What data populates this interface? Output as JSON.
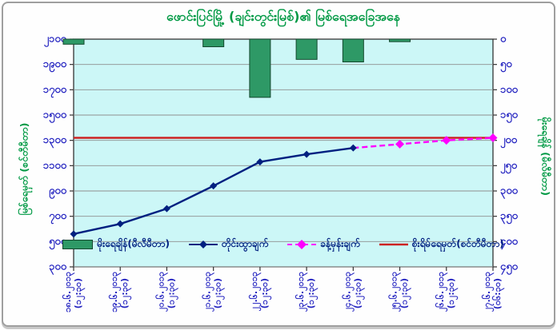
{
  "window": {
    "background": "#ffffff",
    "frame_border_color": "#9f9f9f",
    "plot_background": "#ccf7f7"
  },
  "title": "ဖောင်းပြင်မြို့ (ချင်းတွင်းမြစ်)၏ မြစ်ရေအခြေအနေ",
  "colors": {
    "title_green": "#009944",
    "axis_label_blue": "#1f1fbf",
    "legend_text_navy": "#002080",
    "bar_green": "#2E9966",
    "bar_border": "#14482e",
    "observed_line_navy": "#002080",
    "forecast_line_magenta": "#FF00FF",
    "danger_line_red": "#CC2222",
    "gridline_gray": "#8f8f8f",
    "plot_border": "#333333"
  },
  "chart_data": {
    "type": "combo (bar + line + dashed line + hline)",
    "x_categories": [
      {
        "date": "၁၈.၆.၂၀၁၃",
        "time": "(၁၂:၃၀)"
      },
      {
        "date": "၁၉.၆.၂၀၁၃",
        "time": "(၁၂:၃၀)"
      },
      {
        "date": "၂၀.၆.၂၀၁၃",
        "time": "(၁၂:၃၀)"
      },
      {
        "date": "၂၁.၆.၂၀၁၃",
        "time": "(၁၂:၃၀)"
      },
      {
        "date": "၂၂.၆.၂၀၁၃",
        "time": "(၁၂:၃၀)"
      },
      {
        "date": "၂၃.၆.၂၀၁၃",
        "time": "(၁၂:၃၀)"
      },
      {
        "date": "၂၄.၆.၂၀၁၃",
        "time": "(၁၂:၃၀)"
      },
      {
        "date": "၂၅.၆.၂၀၁၃",
        "time": "(၁၂:၃၀)"
      },
      {
        "date": "၂၆.၆.၂၀၁၃",
        "time": "(၁၂:၃၀)"
      },
      {
        "date": "၂၇.၆.၂၀၁၃",
        "time": "(၀၆:၃၀)"
      }
    ],
    "left_axis": {
      "title": "မြစ်ရေမှတ် (စင်တီမီတာ)",
      "min": 300,
      "max": 2100,
      "step": 200,
      "tick_values": [
        2100,
        1900,
        1700,
        1500,
        1300,
        1100,
        900,
        700,
        500,
        300
      ],
      "tick_labels": [
        "၂၁၀၀",
        "၁၉၀၀",
        "၁၇၀၀",
        "၁၅၀၀",
        "၁၃၀၀",
        "၁၁၀၀",
        "၉၀၀",
        "၇၀၀",
        "၅၀၀",
        "၃၀၀"
      ]
    },
    "right_axis": {
      "title": "မိုးရေချိန် (မီလီမီတာ)",
      "min": 0,
      "max": 450,
      "step": 50,
      "inverted_from_top": true,
      "tick_values": [
        0,
        50,
        100,
        150,
        200,
        250,
        300,
        350,
        400,
        450
      ],
      "tick_labels": [
        "၀",
        "၅၀",
        "၁၀၀",
        "၁၅၀",
        "၂၀၀",
        "၂၅၀",
        "၃၀၀",
        "၃၅၀",
        "၄၀၀",
        "၄၅၀"
      ]
    },
    "series": [
      {
        "name": "မိုးရေချိန်(မီလီမီတာ)",
        "type": "bar",
        "axis": "right",
        "values": [
          10,
          0,
          0,
          15,
          115,
          40,
          45,
          5,
          0,
          0
        ]
      },
      {
        "name": "တိုင်းထွာချက်",
        "type": "line",
        "axis": "left",
        "values": [
          560,
          640,
          760,
          940,
          1130,
          1190,
          1240,
          null,
          null,
          null
        ]
      },
      {
        "name": "ခန့်မှန်းချက်",
        "type": "line-dashed",
        "axis": "left",
        "values": [
          null,
          null,
          null,
          null,
          null,
          null,
          1240,
          1270,
          1300,
          1320
        ]
      },
      {
        "name": "စိုးရိမ်ရေမှတ်(စင်တီမီတာ)",
        "type": "hline",
        "axis": "left",
        "value": 1320
      }
    ]
  }
}
